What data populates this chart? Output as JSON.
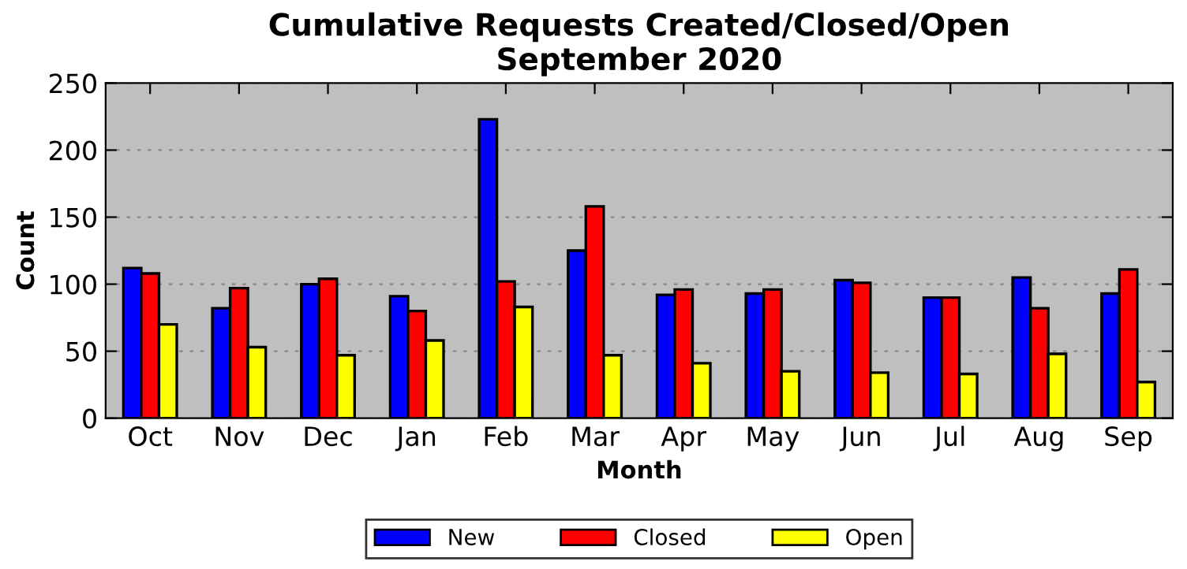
{
  "chart_data": {
    "type": "bar",
    "title": "Cumulative Requests Created/Closed/Open\nSeptember 2020",
    "xlabel": "Month",
    "ylabel": "Count",
    "categories": [
      "Oct",
      "Nov",
      "Dec",
      "Jan",
      "Feb",
      "Mar",
      "Apr",
      "May",
      "Jun",
      "Jul",
      "Aug",
      "Sep"
    ],
    "series": [
      {
        "name": "New",
        "color": "#0000ff",
        "values": [
          112,
          82,
          100,
          91,
          223,
          125,
          92,
          93,
          103,
          90,
          105,
          93
        ]
      },
      {
        "name": "Closed",
        "color": "#ff0000",
        "values": [
          108,
          97,
          104,
          80,
          102,
          158,
          96,
          96,
          101,
          90,
          82,
          111
        ]
      },
      {
        "name": "Open",
        "color": "#ffff00",
        "values": [
          70,
          53,
          47,
          58,
          83,
          47,
          41,
          35,
          34,
          33,
          48,
          27
        ]
      }
    ],
    "ylim": [
      0,
      250
    ],
    "yticks": [
      0,
      50,
      100,
      150,
      200,
      250
    ],
    "grid": "y",
    "legend": "bottom"
  }
}
